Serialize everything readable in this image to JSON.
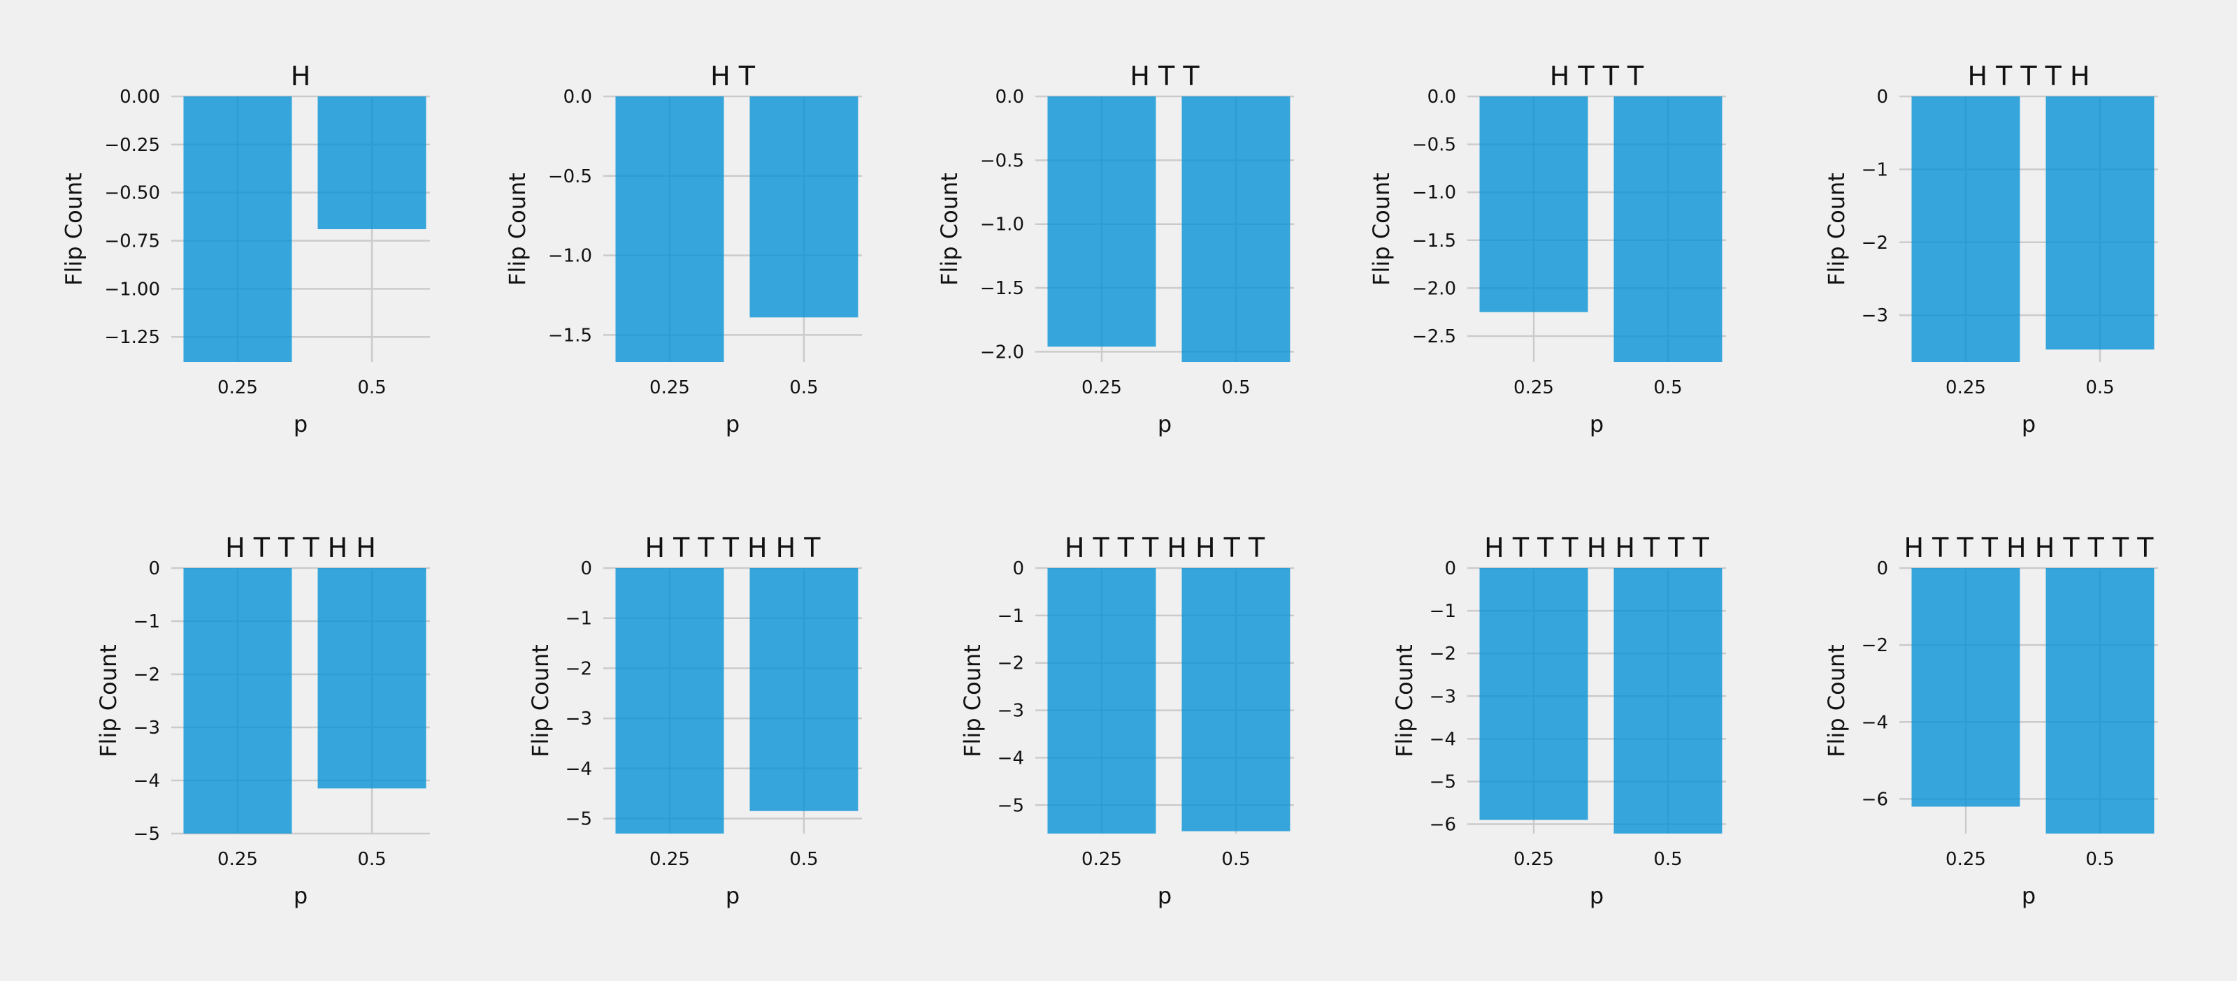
{
  "style": {
    "background": "#f0f0f0",
    "bar_color": "#008fd5",
    "grid_color": "#cbcbcb",
    "text_color": "#111111"
  },
  "chart_data": [
    {
      "type": "bar",
      "title": "H",
      "xlabel": "p",
      "ylabel": "Flip Count",
      "categories": [
        "0.25",
        "0.5"
      ],
      "values": [
        -1.38,
        -0.69
      ],
      "ylim": [
        -1.38,
        0.0
      ],
      "yticks": [
        0.0,
        -0.25,
        -0.5,
        -0.75,
        -1.0,
        -1.25
      ],
      "ytick_labels": [
        "0.00",
        "−0.25",
        "−0.50",
        "−0.75",
        "−1.00",
        "−1.25"
      ],
      "grid": true
    },
    {
      "type": "bar",
      "title": "H T",
      "xlabel": "p",
      "ylabel": "Flip Count",
      "categories": [
        "0.25",
        "0.5"
      ],
      "values": [
        -1.67,
        -1.39
      ],
      "ylim": [
        -1.67,
        0.0
      ],
      "yticks": [
        0.0,
        -0.5,
        -1.0,
        -1.5
      ],
      "ytick_labels": [
        "0.0",
        "−0.5",
        "−1.0",
        "−1.5"
      ],
      "grid": true
    },
    {
      "type": "bar",
      "title": "H T T",
      "xlabel": "p",
      "ylabel": "Flip Count",
      "categories": [
        "0.25",
        "0.5"
      ],
      "values": [
        -1.96,
        -2.08
      ],
      "ylim": [
        -2.08,
        0.0
      ],
      "yticks": [
        0.0,
        -0.5,
        -1.0,
        -1.5,
        -2.0
      ],
      "ytick_labels": [
        "0.0",
        "−0.5",
        "−1.0",
        "−1.5",
        "−2.0"
      ],
      "grid": true
    },
    {
      "type": "bar",
      "title": "H T T T",
      "xlabel": "p",
      "ylabel": "Flip Count",
      "categories": [
        "0.25",
        "0.5"
      ],
      "values": [
        -2.25,
        -2.77
      ],
      "ylim": [
        -2.77,
        0.0
      ],
      "yticks": [
        0.0,
        -0.5,
        -1.0,
        -1.5,
        -2.0,
        -2.5
      ],
      "ytick_labels": [
        "0.0",
        "−0.5",
        "−1.0",
        "−1.5",
        "−2.0",
        "−2.5"
      ],
      "grid": true
    },
    {
      "type": "bar",
      "title": "H T T T H",
      "xlabel": "p",
      "ylabel": "Flip Count",
      "categories": [
        "0.25",
        "0.5"
      ],
      "values": [
        -3.64,
        -3.47
      ],
      "ylim": [
        -3.64,
        0.0
      ],
      "yticks": [
        0,
        -1,
        -2,
        -3
      ],
      "ytick_labels": [
        "0",
        "−1",
        "−2",
        "−3"
      ],
      "grid": true
    },
    {
      "type": "bar",
      "title": "H T T T H H",
      "xlabel": "p",
      "ylabel": "Flip Count",
      "categories": [
        "0.25",
        "0.5"
      ],
      "values": [
        -5.0,
        -4.15
      ],
      "ylim": [
        -5.0,
        0.0
      ],
      "yticks": [
        0,
        -1,
        -2,
        -3,
        -4,
        -5
      ],
      "ytick_labels": [
        "0",
        "−1",
        "−2",
        "−3",
        "−4",
        "−5"
      ],
      "grid": true
    },
    {
      "type": "bar",
      "title": "H T T T H H T",
      "xlabel": "p",
      "ylabel": "Flip Count",
      "categories": [
        "0.25",
        "0.5"
      ],
      "values": [
        -5.3,
        -4.85
      ],
      "ylim": [
        -5.3,
        0.0
      ],
      "yticks": [
        0,
        -1,
        -2,
        -3,
        -4,
        -5
      ],
      "ytick_labels": [
        "0",
        "−1",
        "−2",
        "−3",
        "−4",
        "−5"
      ],
      "grid": true
    },
    {
      "type": "bar",
      "title": "H T T T H H T T",
      "xlabel": "p",
      "ylabel": "Flip Count",
      "categories": [
        "0.25",
        "0.5"
      ],
      "values": [
        -5.6,
        -5.55
      ],
      "ylim": [
        -5.6,
        0.0
      ],
      "yticks": [
        0,
        -1,
        -2,
        -3,
        -4,
        -5
      ],
      "ytick_labels": [
        "0",
        "−1",
        "−2",
        "−3",
        "−4",
        "−5"
      ],
      "grid": true
    },
    {
      "type": "bar",
      "title": "H T T T H H T T T",
      "xlabel": "p",
      "ylabel": "Flip Count",
      "categories": [
        "0.25",
        "0.5"
      ],
      "values": [
        -5.9,
        -6.22
      ],
      "ylim": [
        -6.22,
        0.0
      ],
      "yticks": [
        0,
        -1,
        -2,
        -3,
        -4,
        -5,
        -6
      ],
      "ytick_labels": [
        "0",
        "−1",
        "−2",
        "−3",
        "−4",
        "−5",
        "−6"
      ],
      "grid": true
    },
    {
      "type": "bar",
      "title": "H T T T H H T T T T",
      "xlabel": "p",
      "ylabel": "Flip Count",
      "categories": [
        "0.25",
        "0.5"
      ],
      "values": [
        -6.2,
        -6.9
      ],
      "ylim": [
        -6.9,
        0.0
      ],
      "yticks": [
        0,
        -2,
        -4,
        -6
      ],
      "ytick_labels": [
        "0",
        "−2",
        "−4",
        "−6"
      ],
      "grid": true
    }
  ]
}
